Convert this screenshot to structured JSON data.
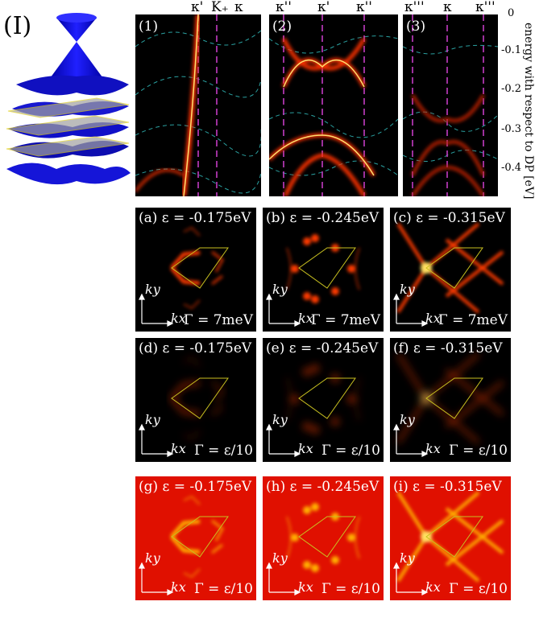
{
  "figure": {
    "part_label": "(I)",
    "y_axis": {
      "label": "energy with respect to DP [eV]",
      "ticks": [
        "0",
        "-0.1",
        "-0.2",
        "-0.3",
        "-0.4"
      ]
    },
    "band_panels": [
      {
        "label": "(1)",
        "markers": [
          "κ'",
          "K₊",
          "κ"
        ]
      },
      {
        "label": "(2)",
        "markers": [
          "κ''",
          "κ'",
          "κ''"
        ]
      },
      {
        "label": "(3)",
        "markers": [
          "κ'''",
          "κ",
          "κ'''"
        ]
      }
    ],
    "rows": [
      {
        "broadening": "Γ = 7meV",
        "panels": [
          {
            "label": "(a) ε = -0.175eV"
          },
          {
            "label": "(b) ε = -0.245eV"
          },
          {
            "label": "(c) ε = -0.315eV"
          }
        ]
      },
      {
        "broadening": "Γ = ε/10",
        "panels": [
          {
            "label": "(d) ε = -0.175eV"
          },
          {
            "label": "(e) ε = -0.245eV"
          },
          {
            "label": "(f) ε = -0.315eV"
          }
        ]
      },
      {
        "broadening": "Γ = ε/10",
        "panels": [
          {
            "label": "(g) ε = -0.175eV"
          },
          {
            "label": "(h) ε = -0.245eV"
          },
          {
            "label": "(i) ε = -0.315eV"
          }
        ]
      }
    ],
    "axis_labels": {
      "kx": "kx",
      "ky": "ky"
    },
    "colors": {
      "panel_bg_dark": "#000000",
      "panel_bg_red": "#e01000",
      "band_glow": "#ff3000",
      "band_core": "#ffe070",
      "marker_line": "#d040d0",
      "dashed_band": "#2aa0a0",
      "bz_outline": "#c8c020",
      "dirac_cone": "#1010c8",
      "plane": "#a0a0a0"
    }
  }
}
